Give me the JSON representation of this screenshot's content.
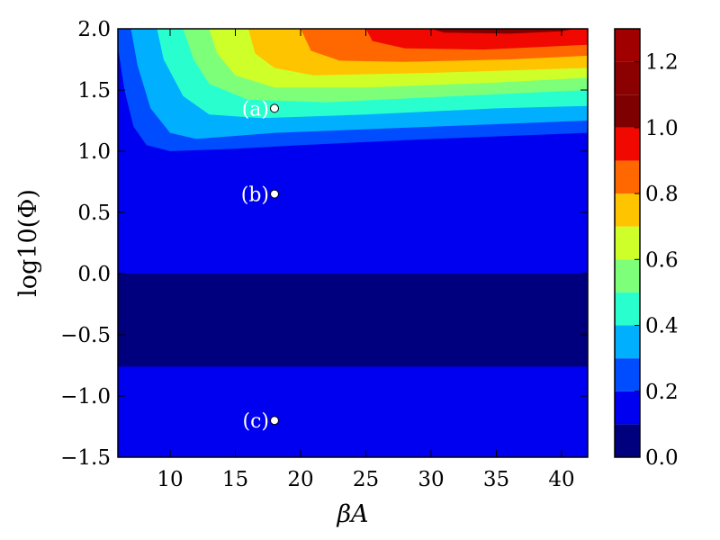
{
  "chart_data": {
    "type": "heatmap",
    "title": "",
    "xlabel": "βA",
    "ylabel": "log10(Φ)",
    "xlim": [
      6,
      42
    ],
    "ylim": [
      -1.5,
      2.0
    ],
    "xticks": [
      10,
      15,
      20,
      25,
      30,
      35,
      40
    ],
    "yticks": [
      -1.5,
      -1.0,
      -0.5,
      0.0,
      0.5,
      1.0,
      1.5,
      2.0
    ],
    "ytick_labels": [
      "−1.5",
      "−1.0",
      "−0.5",
      "0.0",
      "0.5",
      "1.0",
      "1.5",
      "2.0"
    ],
    "colorbar": {
      "range": [
        0.0,
        1.3
      ],
      "levels": [
        0.0,
        0.1,
        0.2,
        0.3,
        0.4,
        0.5,
        0.6,
        0.7,
        0.8,
        0.9,
        1.0,
        1.1,
        1.2,
        1.3
      ],
      "ticks": [
        0.0,
        0.2,
        0.4,
        0.6,
        0.8,
        1.0,
        1.2
      ],
      "tick_labels": [
        "0.0",
        "0.2",
        "0.4",
        "0.6",
        "0.8",
        "1.0",
        "1.2"
      ],
      "colors": [
        "#00007f",
        "#0000f1",
        "#004cff",
        "#00b0ff",
        "#29ffce",
        "#7dff7a",
        "#ceff29",
        "#ffc400",
        "#ff6800",
        "#f10800",
        "#7f0000",
        "#8b0000",
        "#a00000"
      ]
    },
    "colormap": "jet",
    "annotations": [
      {
        "label": "(a)",
        "x": 18,
        "y": 1.35
      },
      {
        "label": "(b)",
        "x": 18,
        "y": 0.65
      },
      {
        "label": "(c)",
        "x": 18,
        "y": -1.2
      }
    ]
  }
}
